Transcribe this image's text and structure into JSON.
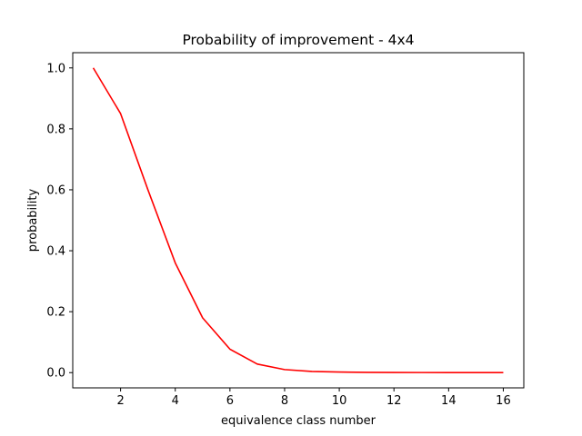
{
  "chart_data": {
    "type": "line",
    "title": "Probability of improvement - 4x4",
    "xlabel": "equivalence class number",
    "ylabel": "probability",
    "xlim": [
      0.25,
      16.75
    ],
    "ylim": [
      -0.05,
      1.05
    ],
    "xticks": [
      2,
      4,
      6,
      8,
      10,
      12,
      14,
      16
    ],
    "yticks": [
      0.0,
      0.2,
      0.4,
      0.6,
      0.8,
      1.0
    ],
    "xtick_labels": [
      "2",
      "4",
      "6",
      "8",
      "10",
      "12",
      "14",
      "16"
    ],
    "ytick_labels": [
      "0.0",
      "0.2",
      "0.4",
      "0.6",
      "0.8",
      "1.0"
    ],
    "grid": false,
    "series": [
      {
        "color": "#ff0000",
        "x": [
          1,
          2,
          3,
          4,
          5,
          6,
          7,
          8,
          9,
          10,
          11,
          12,
          13,
          14,
          15,
          16
        ],
        "y": [
          1.0,
          0.85,
          0.6,
          0.36,
          0.18,
          0.077,
          0.028,
          0.01,
          0.004,
          0.002,
          0.001,
          0.0005,
          0.0003,
          0.0002,
          0.0001,
          0.0001
        ]
      }
    ]
  }
}
